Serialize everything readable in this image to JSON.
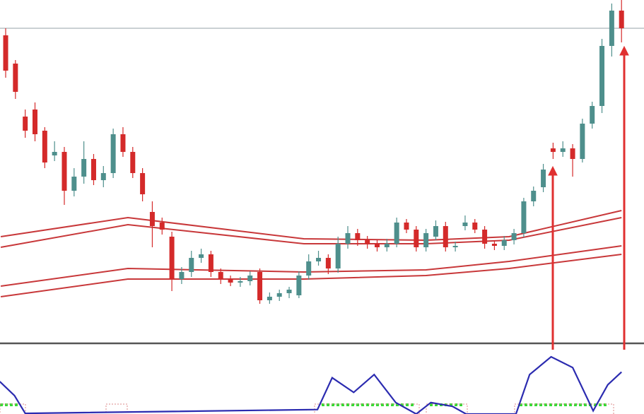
{
  "chart_data": [
    {
      "type": "candlestick",
      "xlim": [
        -0.58,
        65.3
      ],
      "ylim": [
        14,
        500
      ],
      "color_up": "#4e8f8c",
      "color_down": "#d42a2a",
      "open": [
        450,
        410,
        335,
        345,
        315,
        280,
        285,
        230,
        250,
        275,
        245,
        255,
        310,
        285,
        255,
        200,
        185,
        165,
        105,
        115,
        135,
        140,
        115,
        105,
        100,
        102,
        115,
        75,
        80,
        85,
        82,
        110,
        130,
        135,
        120,
        155,
        170,
        160,
        155,
        150,
        155,
        185,
        175,
        150,
        165,
        180,
        150,
        180,
        185,
        175,
        155,
        152,
        160,
        170,
        215,
        235,
        290,
        285,
        290,
        275,
        325,
        350,
        435,
        485
      ],
      "high": [
        460,
        415,
        345,
        355,
        320,
        300,
        292,
        262,
        300,
        282,
        265,
        318,
        320,
        292,
        262,
        215,
        192,
        172,
        122,
        145,
        148,
        145,
        120,
        110,
        108,
        116,
        120,
        86,
        90,
        94,
        116,
        140,
        145,
        140,
        165,
        180,
        176,
        166,
        160,
        162,
        192,
        190,
        180,
        176,
        188,
        186,
        158,
        195,
        190,
        180,
        160,
        166,
        176,
        220,
        236,
        268,
        298,
        300,
        296,
        332,
        356,
        445,
        495,
        500
      ],
      "low": [
        390,
        360,
        305,
        300,
        262,
        272,
        210,
        222,
        240,
        238,
        235,
        248,
        278,
        248,
        215,
        150,
        168,
        88,
        98,
        108,
        128,
        108,
        98,
        95,
        94,
        96,
        70,
        70,
        74,
        78,
        78,
        104,
        124,
        112,
        114,
        148,
        152,
        148,
        144,
        144,
        150,
        170,
        144,
        144,
        160,
        144,
        144,
        174,
        170,
        148,
        146,
        146,
        154,
        164,
        208,
        228,
        275,
        278,
        250,
        270,
        318,
        340,
        420,
        440
      ],
      "close": [
        400,
        370,
        315,
        310,
        270,
        285,
        230,
        250,
        275,
        245,
        255,
        310,
        285,
        255,
        225,
        180,
        175,
        105,
        115,
        135,
        140,
        115,
        105,
        100,
        102,
        110,
        75,
        80,
        85,
        90,
        110,
        130,
        135,
        120,
        155,
        170,
        160,
        155,
        150,
        155,
        185,
        175,
        150,
        170,
        180,
        150,
        152,
        185,
        175,
        155,
        152,
        160,
        170,
        215,
        230,
        260,
        285,
        290,
        275,
        325,
        350,
        435,
        485,
        460
      ],
      "bands": {
        "color": "#c8383a",
        "x": [
          -0.5,
          12.5,
          30.5,
          43,
          51.5,
          63
        ],
        "series": [
          [
            165,
            192,
            162,
            160,
            165,
            202
          ],
          [
            150,
            182,
            155,
            155,
            160,
            192
          ],
          [
            95,
            120,
            115,
            118,
            130,
            152
          ],
          [
            80,
            105,
            105,
            110,
            120,
            140
          ]
        ]
      }
    },
    {
      "type": "line",
      "xlim": [
        -0.58,
        65.3
      ],
      "ylim": [
        0,
        100
      ],
      "color": "#2b2bb0",
      "x": [
        -0.6,
        0.9,
        2,
        31.9,
        33.4,
        35.6,
        37.7,
        39.9,
        42,
        43.5,
        45.7,
        47.1,
        52.2,
        53.6,
        55.8,
        58,
        60.1,
        61.6,
        63
      ],
      "values": [
        51,
        29,
        1,
        7,
        57,
        34,
        62,
        18,
        0,
        18,
        12,
        0,
        0,
        62,
        90,
        73,
        5,
        46,
        66
      ]
    }
  ]
}
